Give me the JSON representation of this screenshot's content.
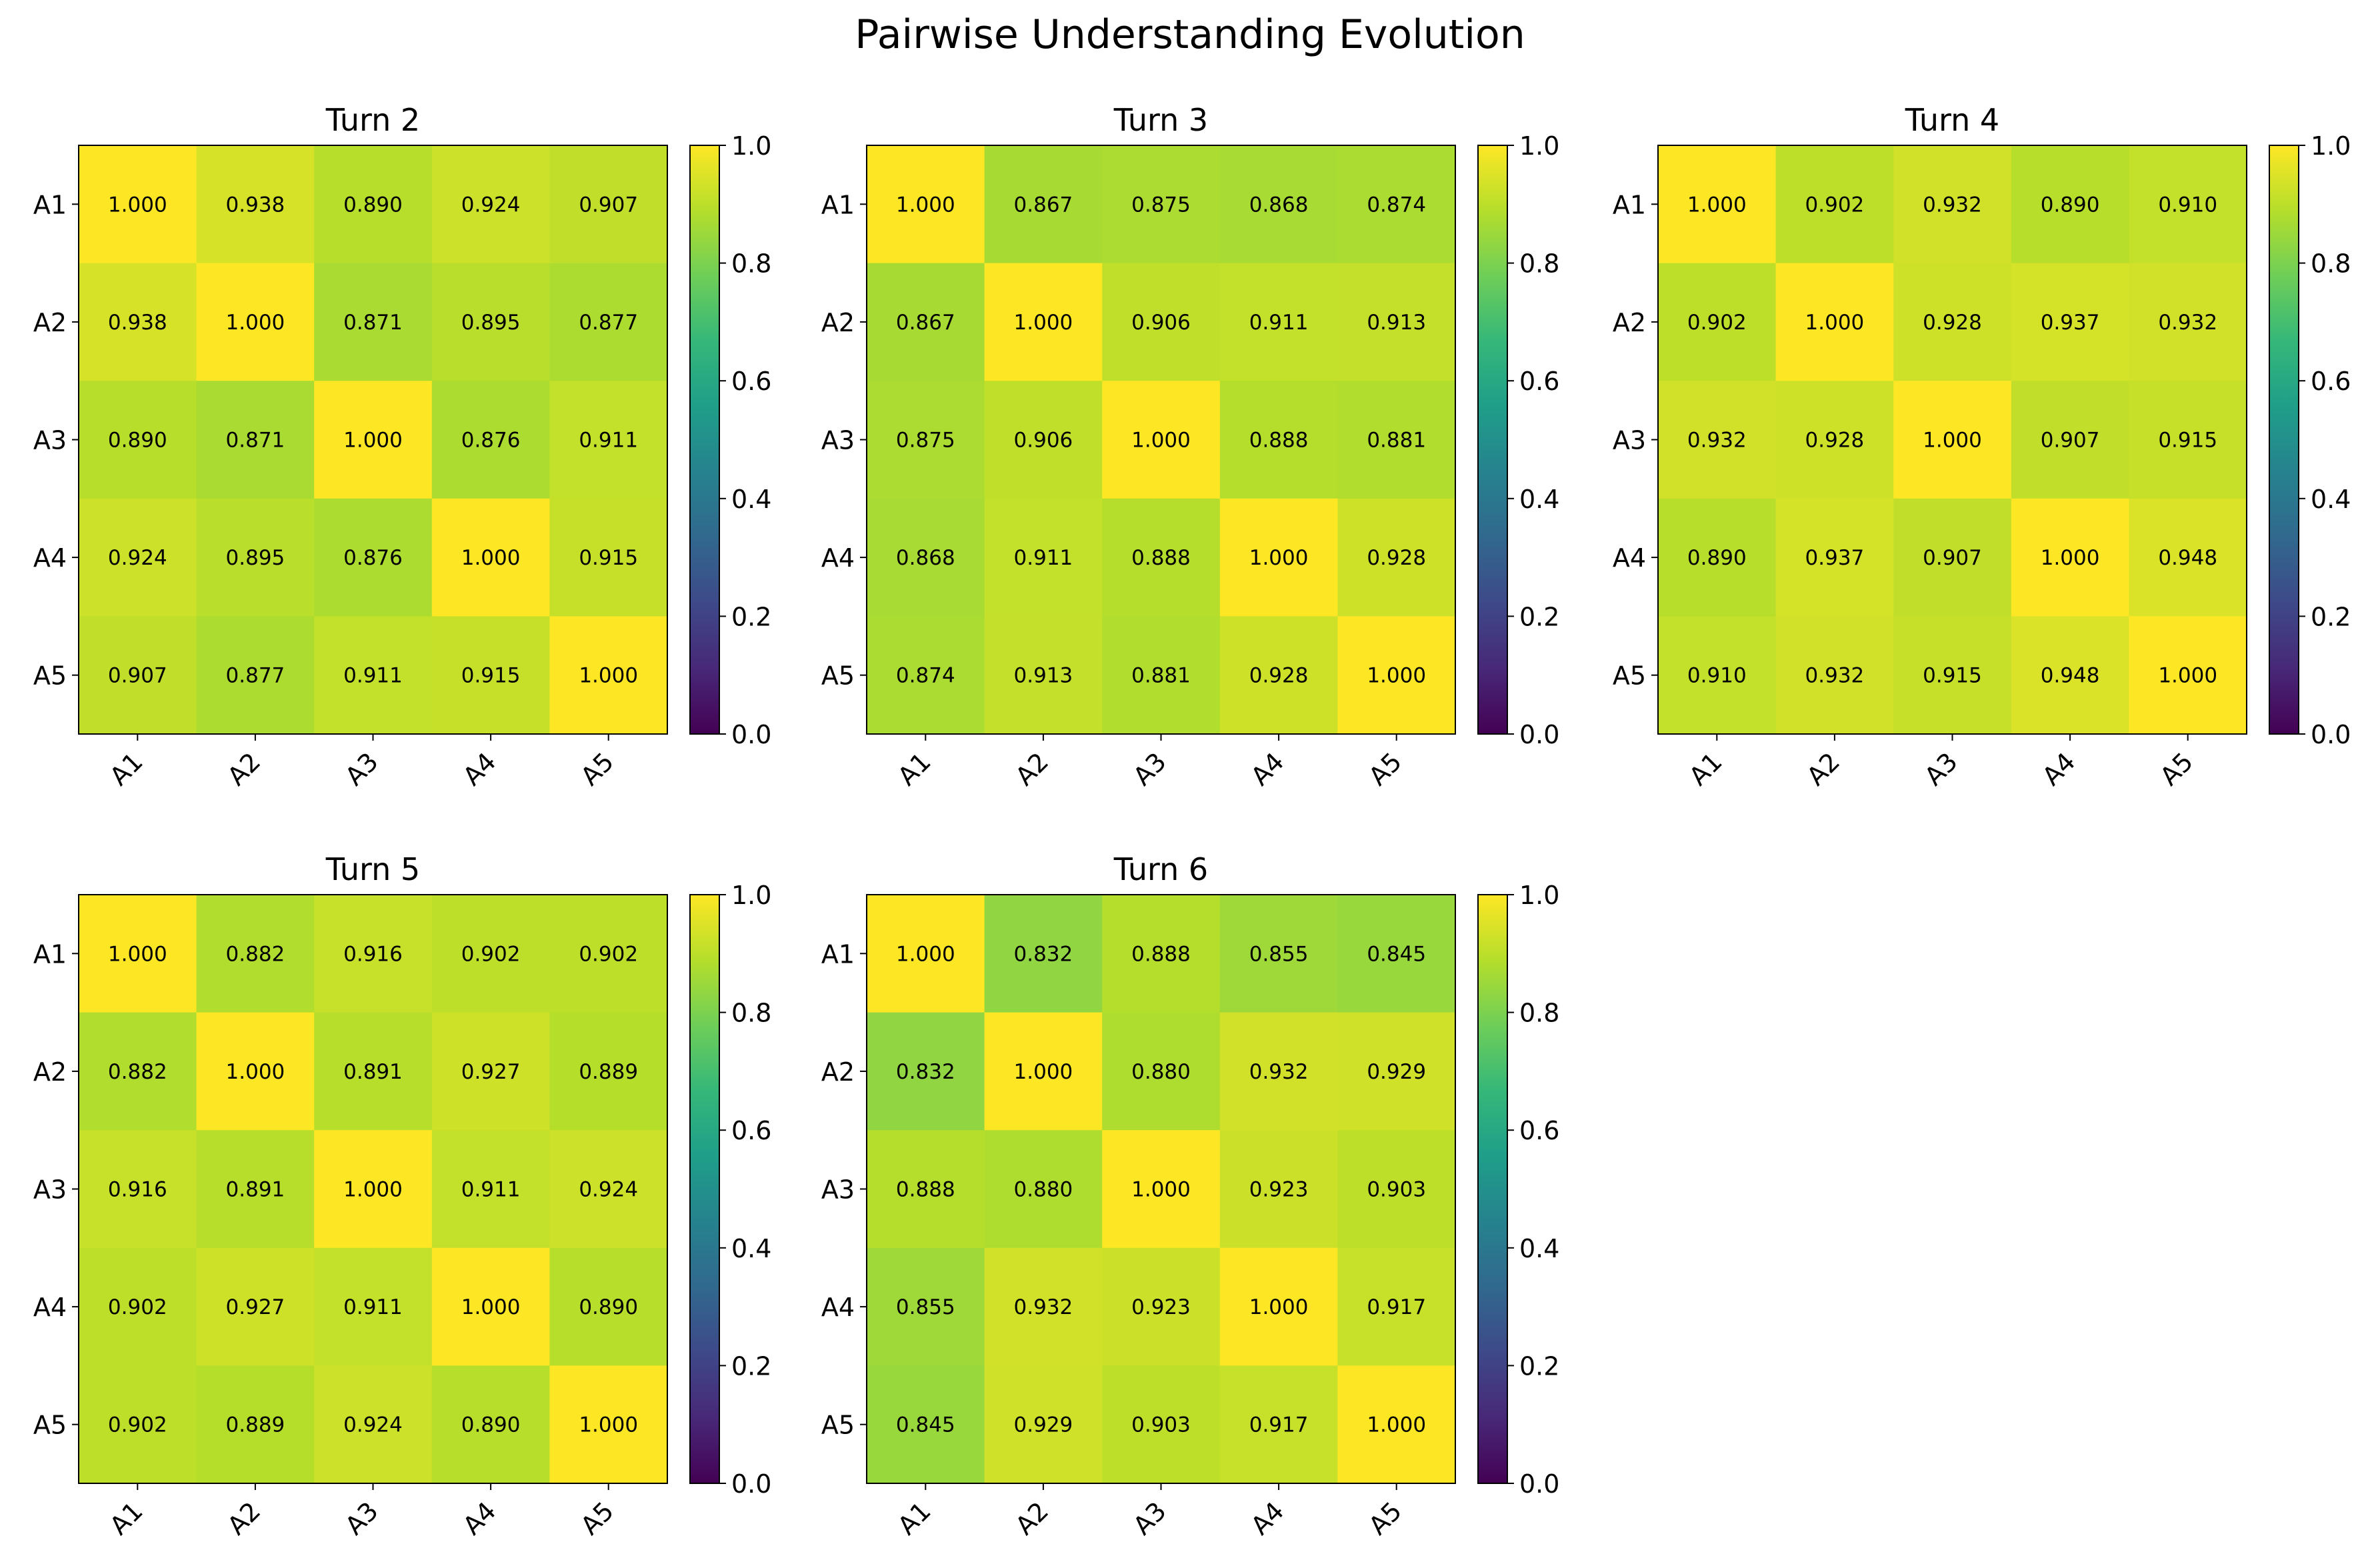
{
  "figure": {
    "title": "Pairwise Understanding Evolution"
  },
  "colormap": {
    "name": "viridis",
    "stops": [
      "#440154",
      "#482878",
      "#3e4989",
      "#31688e",
      "#26828e",
      "#1f9e89",
      "#35b779",
      "#6ece58",
      "#b5de2b",
      "#fde725"
    ]
  },
  "chart_data": [
    {
      "type": "heatmap",
      "title": "Turn 2",
      "row_labels": [
        "A1",
        "A2",
        "A3",
        "A4",
        "A5"
      ],
      "col_labels": [
        "A1",
        "A2",
        "A3",
        "A4",
        "A5"
      ],
      "matrix": [
        [
          1.0,
          0.938,
          0.89,
          0.924,
          0.907
        ],
        [
          0.938,
          1.0,
          0.871,
          0.895,
          0.877
        ],
        [
          0.89,
          0.871,
          1.0,
          0.876,
          0.911
        ],
        [
          0.924,
          0.895,
          0.876,
          1.0,
          0.915
        ],
        [
          0.907,
          0.877,
          0.911,
          0.915,
          1.0
        ]
      ],
      "vmin": 0.0,
      "vmax": 1.0,
      "colorbar_ticks": [
        "0.0",
        "0.2",
        "0.4",
        "0.6",
        "0.8",
        "1.0"
      ]
    },
    {
      "type": "heatmap",
      "title": "Turn 3",
      "row_labels": [
        "A1",
        "A2",
        "A3",
        "A4",
        "A5"
      ],
      "col_labels": [
        "A1",
        "A2",
        "A3",
        "A4",
        "A5"
      ],
      "matrix": [
        [
          1.0,
          0.867,
          0.875,
          0.868,
          0.874
        ],
        [
          0.867,
          1.0,
          0.906,
          0.911,
          0.913
        ],
        [
          0.875,
          0.906,
          1.0,
          0.888,
          0.881
        ],
        [
          0.868,
          0.911,
          0.888,
          1.0,
          0.928
        ],
        [
          0.874,
          0.913,
          0.881,
          0.928,
          1.0
        ]
      ],
      "vmin": 0.0,
      "vmax": 1.0,
      "colorbar_ticks": [
        "0.0",
        "0.2",
        "0.4",
        "0.6",
        "0.8",
        "1.0"
      ]
    },
    {
      "type": "heatmap",
      "title": "Turn 4",
      "row_labels": [
        "A1",
        "A2",
        "A3",
        "A4",
        "A5"
      ],
      "col_labels": [
        "A1",
        "A2",
        "A3",
        "A4",
        "A5"
      ],
      "matrix": [
        [
          1.0,
          0.902,
          0.932,
          0.89,
          0.91
        ],
        [
          0.902,
          1.0,
          0.928,
          0.937,
          0.932
        ],
        [
          0.932,
          0.928,
          1.0,
          0.907,
          0.915
        ],
        [
          0.89,
          0.937,
          0.907,
          1.0,
          0.948
        ],
        [
          0.91,
          0.932,
          0.915,
          0.948,
          1.0
        ]
      ],
      "vmin": 0.0,
      "vmax": 1.0,
      "colorbar_ticks": [
        "0.0",
        "0.2",
        "0.4",
        "0.6",
        "0.8",
        "1.0"
      ]
    },
    {
      "type": "heatmap",
      "title": "Turn 5",
      "row_labels": [
        "A1",
        "A2",
        "A3",
        "A4",
        "A5"
      ],
      "col_labels": [
        "A1",
        "A2",
        "A3",
        "A4",
        "A5"
      ],
      "matrix": [
        [
          1.0,
          0.882,
          0.916,
          0.902,
          0.902
        ],
        [
          0.882,
          1.0,
          0.891,
          0.927,
          0.889
        ],
        [
          0.916,
          0.891,
          1.0,
          0.911,
          0.924
        ],
        [
          0.902,
          0.927,
          0.911,
          1.0,
          0.89
        ],
        [
          0.902,
          0.889,
          0.924,
          0.89,
          1.0
        ]
      ],
      "vmin": 0.0,
      "vmax": 1.0,
      "colorbar_ticks": [
        "0.0",
        "0.2",
        "0.4",
        "0.6",
        "0.8",
        "1.0"
      ]
    },
    {
      "type": "heatmap",
      "title": "Turn 6",
      "row_labels": [
        "A1",
        "A2",
        "A3",
        "A4",
        "A5"
      ],
      "col_labels": [
        "A1",
        "A2",
        "A3",
        "A4",
        "A5"
      ],
      "matrix": [
        [
          1.0,
          0.832,
          0.888,
          0.855,
          0.845
        ],
        [
          0.832,
          1.0,
          0.88,
          0.932,
          0.929
        ],
        [
          0.888,
          0.88,
          1.0,
          0.923,
          0.903
        ],
        [
          0.855,
          0.932,
          0.923,
          1.0,
          0.917
        ],
        [
          0.845,
          0.929,
          0.903,
          0.917,
          1.0
        ]
      ],
      "vmin": 0.0,
      "vmax": 1.0,
      "colorbar_ticks": [
        "0.0",
        "0.2",
        "0.4",
        "0.6",
        "0.8",
        "1.0"
      ]
    }
  ]
}
